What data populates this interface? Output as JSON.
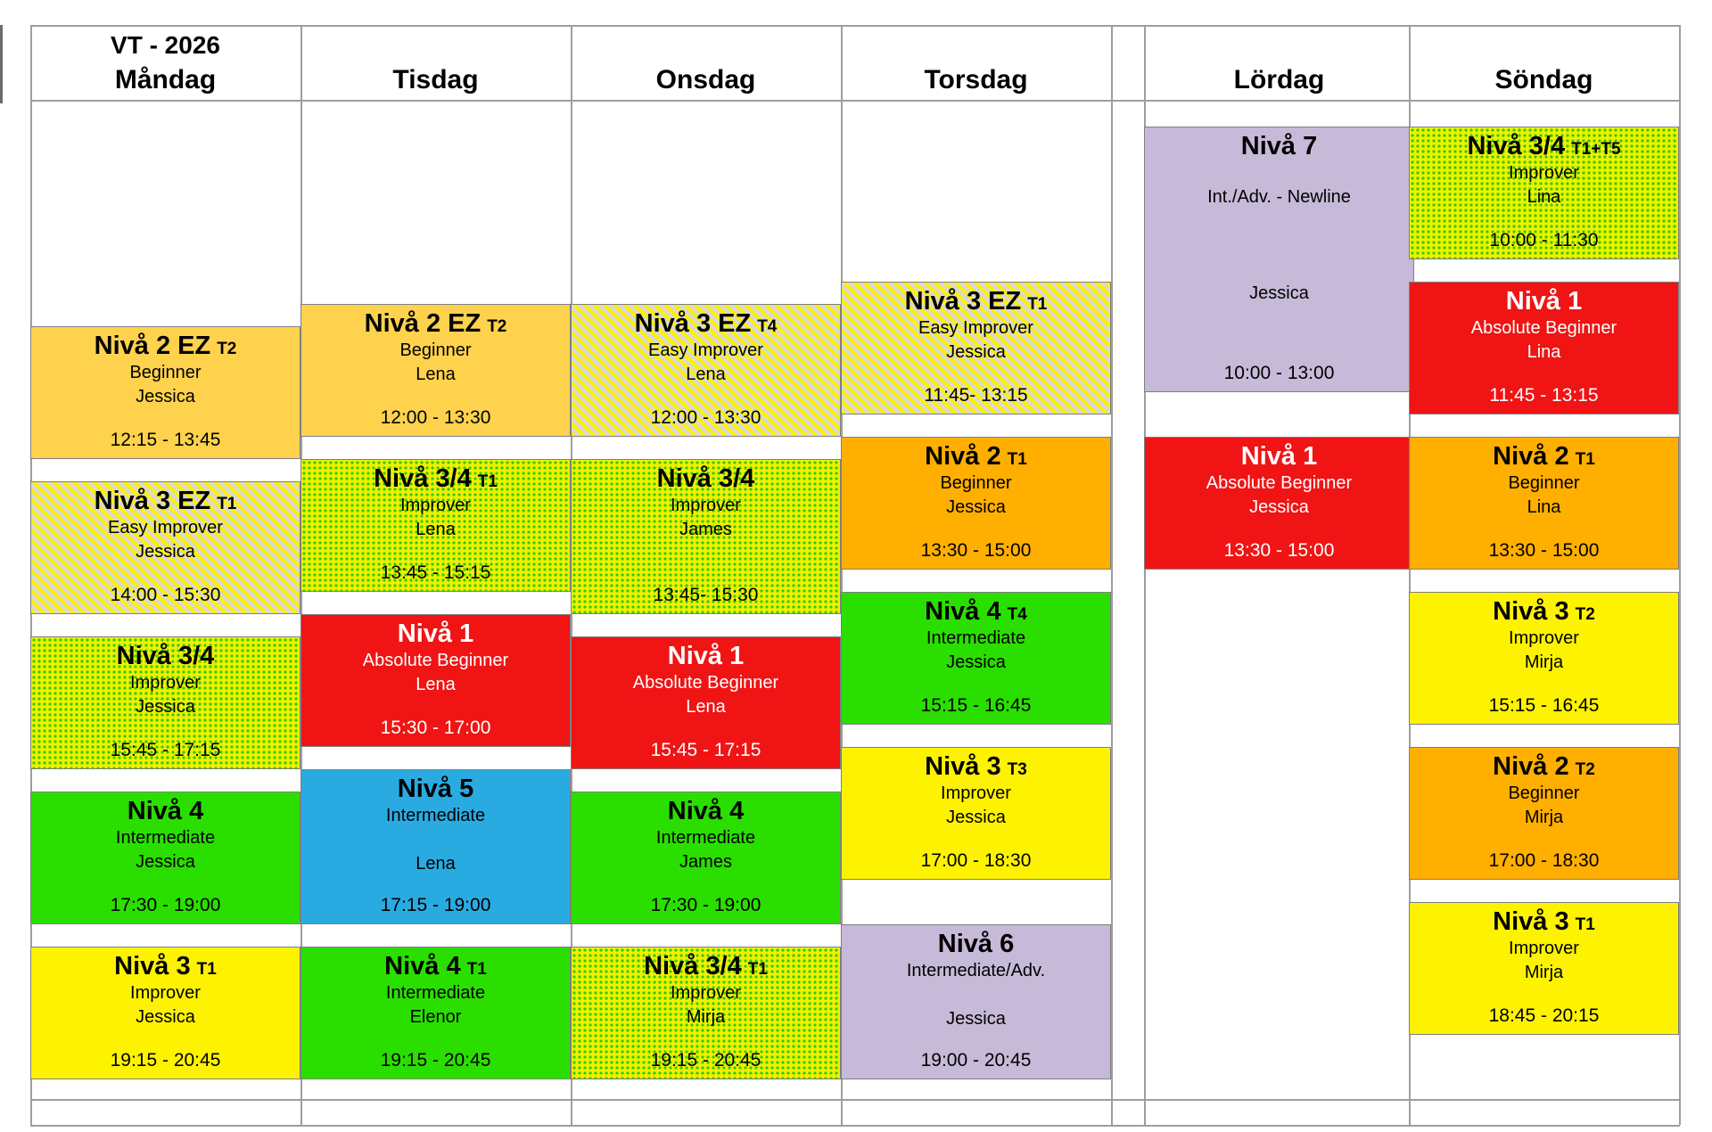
{
  "header": {
    "term": "VT - 2026"
  },
  "columns": [
    {
      "day": "Måndag",
      "classes": [
        {
          "level": "Nivå 2 EZ",
          "suffix": "T2",
          "lines": [
            "Beginner",
            "Jessica"
          ],
          "time": "12:15 - 13:45",
          "style": "amber"
        },
        {
          "level": "Nivå 3 EZ",
          "suffix": "T1",
          "lines": [
            "Easy Improver",
            "Jessica"
          ],
          "time": "14:00 - 15:30",
          "style": "striped"
        },
        {
          "level": "Nivå 3/4",
          "suffix": "",
          "lines": [
            "Improver",
            "Jessica"
          ],
          "time": "15:45 - 17:15",
          "style": "dotted"
        },
        {
          "level": "Nivå 4",
          "suffix": "",
          "lines": [
            "Intermediate",
            "Jessica"
          ],
          "time": "17:30 - 19:00",
          "style": "green"
        },
        {
          "level": "Nivå 3",
          "suffix": "T1",
          "lines": [
            "Improver",
            "Jessica"
          ],
          "time": "19:15 - 20:45",
          "style": "yellow"
        }
      ]
    },
    {
      "day": "Tisdag",
      "classes": [
        {
          "level": "Nivå 2 EZ",
          "suffix": "T2",
          "lines": [
            "Beginner",
            "Lena"
          ],
          "time": "12:00 - 13:30",
          "style": "amber"
        },
        {
          "level": "Nivå 3/4",
          "suffix": "T1",
          "lines": [
            "Improver",
            "Lena"
          ],
          "time": "13:45 - 15:15",
          "style": "dotted"
        },
        {
          "level": "Nivå 1",
          "suffix": "",
          "lines": [
            "Absolute Beginner",
            "Lena"
          ],
          "time": "15:30 - 17:00",
          "style": "red"
        },
        {
          "level": "Nivå 5",
          "suffix": "",
          "lines": [
            "Intermediate",
            "",
            "Lena"
          ],
          "time": "17:15 - 19:00",
          "style": "blue"
        },
        {
          "level": "Nivå 4",
          "suffix": "T1",
          "lines": [
            "Intermediate",
            "Elenor"
          ],
          "time": "19:15 - 20:45",
          "style": "green"
        }
      ]
    },
    {
      "day": "Onsdag",
      "classes": [
        {
          "level": "Nivå 3 EZ",
          "suffix": "T4",
          "lines": [
            "Easy Improver",
            "Lena"
          ],
          "time": "12:00 - 13:30",
          "style": "striped"
        },
        {
          "level": "Nivå 3/4",
          "suffix": "",
          "lines": [
            "Improver",
            "James"
          ],
          "time": "13:45- 15:30",
          "style": "dotted"
        },
        {
          "level": "Nivå 1",
          "suffix": "",
          "lines": [
            "Absolute Beginner",
            "Lena"
          ],
          "time": "15:45 - 17:15",
          "style": "red"
        },
        {
          "level": "Nivå 4",
          "suffix": "",
          "lines": [
            "Intermediate",
            "James"
          ],
          "time": "17:30 - 19:00",
          "style": "green"
        },
        {
          "level": "Nivå 3/4",
          "suffix": "T1",
          "lines": [
            "Improver",
            "Mirja"
          ],
          "time": "19:15 - 20:45",
          "style": "dotted"
        }
      ]
    },
    {
      "day": "Torsdag",
      "classes": [
        {
          "level": "Nivå 3 EZ",
          "suffix": "T1",
          "lines": [
            "Easy Improver",
            "Jessica"
          ],
          "time": "11:45- 13:15",
          "style": "striped"
        },
        {
          "level": "Nivå 2",
          "suffix": "T1",
          "lines": [
            "Beginner",
            "Jessica"
          ],
          "time": "13:30 - 15:00",
          "style": "orange"
        },
        {
          "level": "Nivå 4",
          "suffix": "T4",
          "lines": [
            "Intermediate",
            "Jessica"
          ],
          "time": "15:15 - 16:45",
          "style": "green"
        },
        {
          "level": "Nivå 3",
          "suffix": "T3",
          "lines": [
            "Improver",
            "Jessica"
          ],
          "time": "17:00 - 18:30",
          "style": "yellow"
        },
        {
          "level": "Nivå 6",
          "suffix": "",
          "lines": [
            "Intermediate/Adv.",
            "",
            "Jessica"
          ],
          "time": "19:00 - 20:45",
          "style": "lavender"
        }
      ]
    },
    {
      "day": "Lördag",
      "classes": [
        {
          "level": "Nivå 7",
          "suffix": "",
          "lines": [
            "",
            "Int./Adv. - Newline",
            "",
            "",
            "",
            "Jessica"
          ],
          "time": "10:00 - 13:00",
          "style": "lavender"
        },
        {
          "level": "Nivå 1",
          "suffix": "",
          "lines": [
            "Absolute Beginner",
            "Jessica"
          ],
          "time": "13:30 - 15:00",
          "style": "red"
        }
      ]
    },
    {
      "day": "Söndag",
      "classes": [
        {
          "level": "Nivå 3/4",
          "suffix": "T1+T5",
          "lines": [
            "Improver",
            "Lina"
          ],
          "time": "10:00 - 11:30",
          "style": "dotted"
        },
        {
          "level": "Nivå 1",
          "suffix": "",
          "lines": [
            "Absolute Beginner",
            "Lina"
          ],
          "time": "11:45 - 13:15",
          "style": "red"
        },
        {
          "level": "Nivå 2",
          "suffix": "T1",
          "lines": [
            "Beginner",
            "Lina"
          ],
          "time": "13:30 - 15:00",
          "style": "orange"
        },
        {
          "level": "Nivå 3",
          "suffix": "T2",
          "lines": [
            "Improver",
            "Mirja"
          ],
          "time": "15:15 - 16:45",
          "style": "yellow"
        },
        {
          "level": "Nivå 2",
          "suffix": "T2",
          "lines": [
            "Beginner",
            "Mirja"
          ],
          "time": "17:00 - 18:30",
          "style": "orange"
        },
        {
          "level": "Nivå 3",
          "suffix": "T1",
          "lines": [
            "Improver",
            "Mirja"
          ],
          "time": "18:45 - 20:15",
          "style": "yellow"
        }
      ]
    }
  ],
  "colors": {
    "amber": "#ffd24d",
    "orange": "#ffaf00",
    "yellow": "#fdf200",
    "green": "#2adf00",
    "red": "#f01414",
    "blue": "#29abe2",
    "lavender": "#c6bad8",
    "stripe_yellow": "#fff100",
    "stripe_gray": "#d8d8d8",
    "dot_bg": "#f1ef00",
    "dot_green": "#2fcd00",
    "grid": "#9e9e9e",
    "card_border": "#7f7f7f"
  }
}
